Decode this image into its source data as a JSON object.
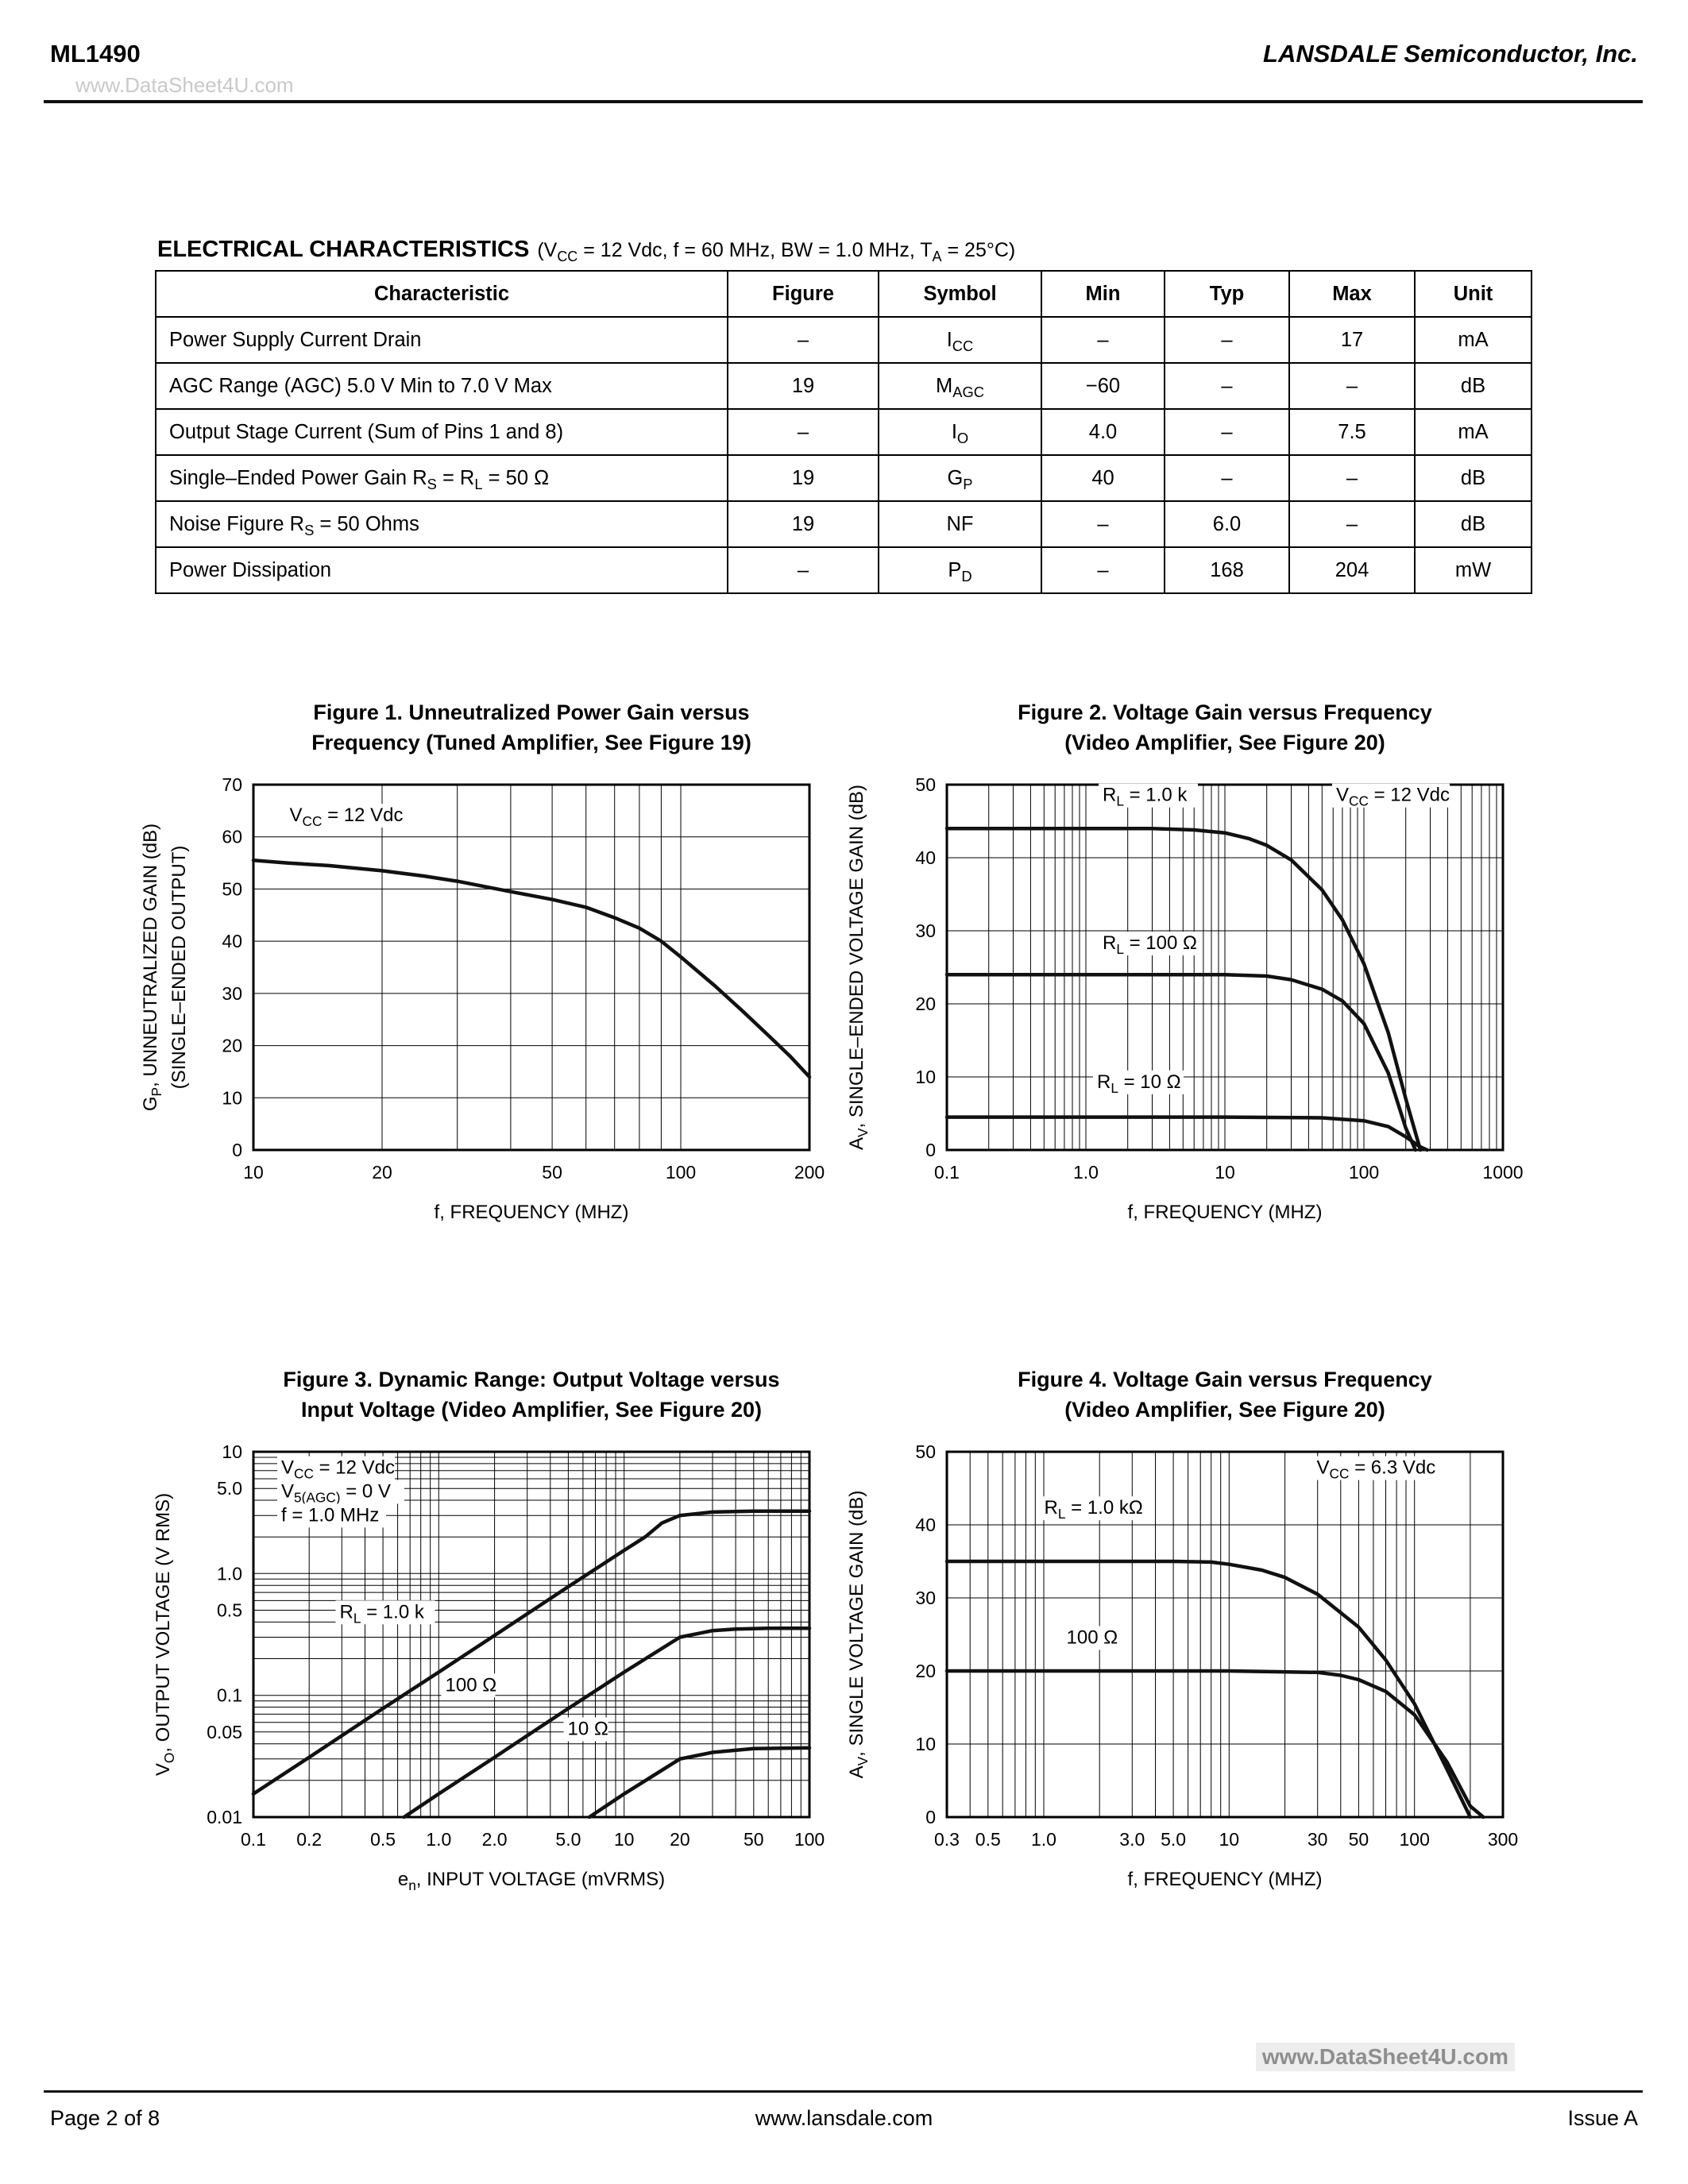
{
  "header": {
    "doc_id": "ML1490",
    "company": "LANSDALE Semiconductor, Inc.",
    "watermark": "www.DataSheet4U.com"
  },
  "section": {
    "title": "ELECTRICAL CHARACTERISTICS",
    "conditions": "(V_{CC} = 12 Vdc, f = 60 MHz, BW = 1.0 MHz, T_{A} = 25°C)"
  },
  "table": {
    "columns": [
      "Characteristic",
      "Figure",
      "Symbol",
      "Min",
      "Typ",
      "Max",
      "Unit"
    ],
    "rows": [
      [
        "Power Supply Current Drain",
        "–",
        "I_{CC}",
        "–",
        "–",
        "17",
        "mA"
      ],
      [
        "AGC Range (AGC) 5.0 V Min to 7.0 V Max",
        "19",
        "M_{AGC}",
        "−60",
        "–",
        "–",
        "dB"
      ],
      [
        "Output Stage Current (Sum of Pins 1 and 8)",
        "–",
        "I_{O}",
        "4.0",
        "–",
        "7.5",
        "mA"
      ],
      [
        "Single–Ended Power Gain R_{S} = R_{L} = 50 Ω",
        "19",
        "G_{P}",
        "40",
        "–",
        "–",
        "dB"
      ],
      [
        "Noise Figure R_{S} = 50 Ohms",
        "19",
        "NF",
        "–",
        "6.0",
        "–",
        "dB"
      ],
      [
        "Power Dissipation",
        "–",
        "P_{D}",
        "–",
        "168",
        "204",
        "mW"
      ]
    ]
  },
  "chart_data": [
    {
      "type": "line",
      "title_line1": "Figure 1. Unneutralized Power Gain versus",
      "title_line2": "Frequency (Tuned Amplifier, See Figure 19)",
      "xlabel": "f, FREQUENCY (MHZ)",
      "ylabel": "G_{P}, UNNEUTRALIZED GAIN (dB)",
      "ylabel2": "(SINGLE–ENDED OUTPUT)",
      "x_scale": "log",
      "y_scale": "linear",
      "xlim": [
        10,
        200
      ],
      "ylim": [
        0,
        70
      ],
      "y_grid_step": 10,
      "x_ticks": [
        {
          "v": 10,
          "label": "10"
        },
        {
          "v": 20,
          "label": "20"
        },
        {
          "v": 50,
          "label": "50"
        },
        {
          "v": 100,
          "label": "100"
        },
        {
          "v": 200,
          "label": "200"
        }
      ],
      "y_ticks": [
        {
          "v": 0,
          "label": "0"
        },
        {
          "v": 10,
          "label": "10"
        },
        {
          "v": 20,
          "label": "20"
        },
        {
          "v": 30,
          "label": "30"
        },
        {
          "v": 40,
          "label": "40"
        },
        {
          "v": 50,
          "label": "50"
        },
        {
          "v": 60,
          "label": "60"
        },
        {
          "v": 70,
          "label": "70"
        }
      ],
      "series": [
        {
          "name": "gain",
          "x": [
            10,
            12,
            15,
            20,
            25,
            30,
            40,
            50,
            60,
            70,
            80,
            90,
            100,
            120,
            140,
            160,
            180,
            200
          ],
          "y": [
            55.5,
            55,
            54.5,
            53.5,
            52.5,
            51.5,
            49.5,
            48,
            46.5,
            44.5,
            42.5,
            40,
            37,
            31.5,
            26.5,
            22,
            18,
            14
          ]
        }
      ],
      "annotations": [
        {
          "text": "V_{CC} = 12 Vdc",
          "fx": 0.065,
          "fy": 0.1
        }
      ]
    },
    {
      "type": "line",
      "title_line1": "Figure 2. Voltage Gain versus Frequency",
      "title_line2": "(Video Amplifier, See Figure 20)",
      "xlabel": "f, FREQUENCY (MHZ)",
      "ylabel": "A_{V}, SINGLE–ENDED VOLTAGE GAIN (dB)",
      "x_scale": "log",
      "y_scale": "linear",
      "xlim": [
        0.1,
        1000
      ],
      "ylim": [
        0,
        50
      ],
      "y_grid_step": 10,
      "x_ticks": [
        {
          "v": 0.1,
          "label": "0.1"
        },
        {
          "v": 1,
          "label": "1.0"
        },
        {
          "v": 10,
          "label": "10"
        },
        {
          "v": 100,
          "label": "100"
        },
        {
          "v": 1000,
          "label": "1000"
        }
      ],
      "y_ticks": [
        {
          "v": 0,
          "label": "0"
        },
        {
          "v": 10,
          "label": "10"
        },
        {
          "v": 20,
          "label": "20"
        },
        {
          "v": 30,
          "label": "30"
        },
        {
          "v": 40,
          "label": "40"
        },
        {
          "v": 50,
          "label": "50"
        }
      ],
      "series": [
        {
          "name": "RL = 1.0 k",
          "x": [
            0.1,
            1,
            3,
            6,
            10,
            15,
            20,
            30,
            50,
            70,
            100,
            150,
            200,
            255
          ],
          "y": [
            44,
            44,
            44,
            43.8,
            43.4,
            42.6,
            41.7,
            39.7,
            35.6,
            31.5,
            25.5,
            16,
            7,
            0
          ]
        },
        {
          "name": "RL = 100 Ω",
          "x": [
            0.1,
            1,
            10,
            20,
            30,
            50,
            70,
            100,
            150,
            200,
            235
          ],
          "y": [
            24,
            24,
            24,
            23.8,
            23.3,
            22,
            20.4,
            17.3,
            10.5,
            3,
            0
          ]
        },
        {
          "name": "RL = 10 Ω",
          "x": [
            0.1,
            1,
            10,
            50,
            100,
            150,
            200,
            250,
            285
          ],
          "y": [
            4.5,
            4.5,
            4.5,
            4.4,
            4,
            3.2,
            1.8,
            0.5,
            0
          ]
        }
      ],
      "annotations": [
        {
          "text": "R_{L} = 1.0 k",
          "fx": 0.28,
          "fy": 0.045
        },
        {
          "text": "V_{CC} = 12 Vdc",
          "fx": 0.7,
          "fy": 0.045
        },
        {
          "text": "R_{L} = 100 Ω",
          "fx": 0.28,
          "fy": 0.45
        },
        {
          "text": "R_{L} = 10 Ω",
          "fx": 0.27,
          "fy": 0.83
        }
      ]
    },
    {
      "type": "line",
      "title_line1": "Figure 3. Dynamic Range: Output Voltage versus",
      "title_line2": "Input Voltage (Video Amplifier, See Figure 20)",
      "xlabel": "e_{n}, INPUT VOLTAGE (mVRMS)",
      "ylabel": "V_{O}, OUTPUT VOLTAGE (V RMS)",
      "x_scale": "log",
      "y_scale": "log",
      "xlim": [
        0.1,
        100
      ],
      "ylim": [
        0.01,
        10
      ],
      "x_ticks": [
        {
          "v": 0.1,
          "label": "0.1"
        },
        {
          "v": 0.2,
          "label": "0.2"
        },
        {
          "v": 0.5,
          "label": "0.5"
        },
        {
          "v": 1,
          "label": "1.0"
        },
        {
          "v": 2,
          "label": "2.0"
        },
        {
          "v": 5,
          "label": "5.0"
        },
        {
          "v": 10,
          "label": "10"
        },
        {
          "v": 20,
          "label": "20"
        },
        {
          "v": 50,
          "label": "50"
        },
        {
          "v": 100,
          "label": "100"
        }
      ],
      "y_ticks": [
        {
          "v": 0.01,
          "label": "0.01"
        },
        {
          "v": 0.05,
          "label": "0.05"
        },
        {
          "v": 0.1,
          "label": "0.1"
        },
        {
          "v": 0.5,
          "label": "0.5"
        },
        {
          "v": 1,
          "label": "1.0"
        },
        {
          "v": 5,
          "label": "5.0"
        },
        {
          "v": 10,
          "label": "10"
        }
      ],
      "series": [
        {
          "name": "RL = 1.0 k",
          "x": [
            0.1,
            0.2,
            0.5,
            1,
            2,
            5,
            10,
            13,
            16,
            20,
            30,
            50,
            100
          ],
          "y": [
            0.0155,
            0.031,
            0.078,
            0.155,
            0.31,
            0.78,
            1.55,
            2.0,
            2.6,
            3.0,
            3.2,
            3.25,
            3.25
          ]
        },
        {
          "name": "100 Ω",
          "x": [
            0.65,
            1,
            2,
            5,
            10,
            20,
            30,
            40,
            60,
            100
          ],
          "y": [
            0.01,
            0.0155,
            0.031,
            0.078,
            0.155,
            0.3,
            0.34,
            0.35,
            0.355,
            0.355
          ]
        },
        {
          "name": "10 Ω",
          "x": [
            6.5,
            10,
            20,
            30,
            50,
            100
          ],
          "y": [
            0.01,
            0.0155,
            0.03,
            0.034,
            0.0365,
            0.037
          ]
        }
      ],
      "annotations": [
        {
          "text": "V_{CC} = 12 Vdc",
          "fx": 0.05,
          "fy": 0.06
        },
        {
          "text": "V_{5(AGC)} = 0 V",
          "fx": 0.05,
          "fy": 0.125
        },
        {
          "text": "f = 1.0 MHz",
          "fx": 0.05,
          "fy": 0.19
        },
        {
          "text": "R_{L} = 1.0 k",
          "fx": 0.155,
          "fy": 0.455
        },
        {
          "text": "100 Ω",
          "fx": 0.345,
          "fy": 0.655
        },
        {
          "text": "10 Ω",
          "fx": 0.565,
          "fy": 0.775
        }
      ]
    },
    {
      "type": "line",
      "title_line1": "Figure 4. Voltage Gain versus Frequency",
      "title_line2": "(Video Amplifier, See Figure 20)",
      "xlabel": "f, FREQUENCY (MHZ)",
      "ylabel": "A_{V}, SINGLE VOLTAGE GAIN (dB)",
      "x_scale": "log",
      "y_scale": "linear",
      "xlim": [
        0.3,
        300
      ],
      "ylim": [
        0,
        50
      ],
      "y_grid_step": 10,
      "x_ticks": [
        {
          "v": 0.3,
          "label": "0.3"
        },
        {
          "v": 0.5,
          "label": "0.5"
        },
        {
          "v": 1,
          "label": "1.0"
        },
        {
          "v": 3,
          "label": "3.0"
        },
        {
          "v": 5,
          "label": "5.0"
        },
        {
          "v": 10,
          "label": "10"
        },
        {
          "v": 30,
          "label": "30"
        },
        {
          "v": 50,
          "label": "50"
        },
        {
          "v": 100,
          "label": "100"
        },
        {
          "v": 300,
          "label": "300"
        }
      ],
      "y_ticks": [
        {
          "v": 0,
          "label": "0"
        },
        {
          "v": 10,
          "label": "10"
        },
        {
          "v": 20,
          "label": "20"
        },
        {
          "v": 30,
          "label": "30"
        },
        {
          "v": 40,
          "label": "40"
        },
        {
          "v": 50,
          "label": "50"
        }
      ],
      "series": [
        {
          "name": "RL = 1.0 kΩ",
          "x": [
            0.3,
            1,
            5,
            8,
            10,
            15,
            20,
            30,
            50,
            70,
            100,
            150,
            200
          ],
          "y": [
            35,
            35,
            35,
            34.9,
            34.6,
            33.8,
            32.8,
            30.5,
            26,
            21.5,
            15.5,
            6.5,
            0
          ]
        },
        {
          "name": "100 Ω",
          "x": [
            0.3,
            1,
            10,
            30,
            40,
            50,
            70,
            100,
            150,
            200,
            235
          ],
          "y": [
            20,
            20,
            20,
            19.8,
            19.4,
            18.8,
            17.2,
            14,
            7.5,
            1.5,
            0
          ]
        }
      ],
      "annotations": [
        {
          "text": "V_{CC} = 6.3 Vdc",
          "fx": 0.665,
          "fy": 0.06
        },
        {
          "text": "R_{L} = 1.0 kΩ",
          "fx": 0.175,
          "fy": 0.17
        },
        {
          "text": "100 Ω",
          "fx": 0.215,
          "fy": 0.525
        }
      ]
    }
  ],
  "footer": {
    "watermark": "www.DataSheet4U.com",
    "page": "Page 2 of 8",
    "site": "www.lansdale.com",
    "issue": "Issue A"
  }
}
